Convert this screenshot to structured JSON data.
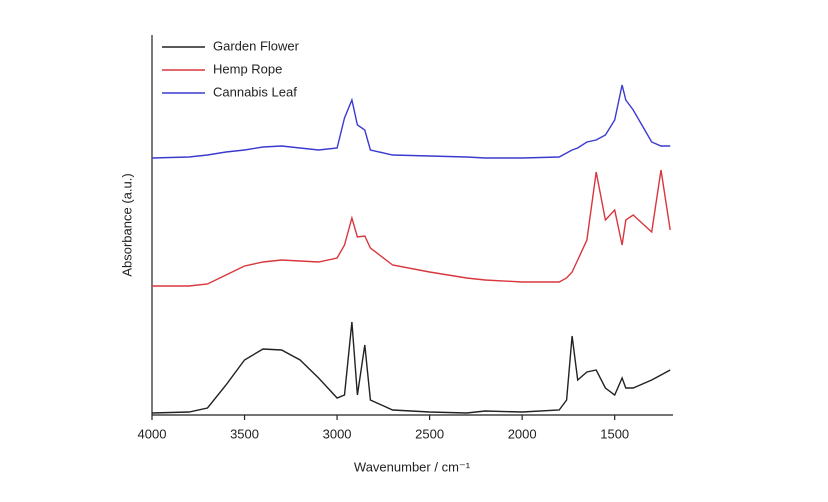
{
  "chart_data": {
    "type": "line",
    "x_label": "Wavenumber / cm⁻¹",
    "y_label": "Absorbance (a.u.)",
    "x": [
      4000,
      3800,
      3700,
      3600,
      3500,
      3400,
      3300,
      3200,
      3100,
      3000,
      2960,
      2920,
      2890,
      2850,
      2820,
      2700,
      2500,
      2300,
      2200,
      2000,
      1800,
      1760,
      1730,
      1700,
      1650,
      1600,
      1550,
      1500,
      1460,
      1440,
      1400,
      1300,
      1250,
      1200
    ],
    "xlim": [
      4000,
      1185
    ],
    "xticks": [
      4000,
      3500,
      3000,
      2500,
      2000,
      1500
    ],
    "ylim": [
      0,
      380
    ],
    "legend": "upper left",
    "series": [
      {
        "name": "Garden Flower",
        "color": "#222222",
        "values": [
          2,
          3,
          7,
          30,
          55,
          66,
          65,
          55,
          37,
          17,
          20,
          93,
          20,
          70,
          15,
          5,
          3,
          2,
          4,
          3,
          5,
          15,
          79,
          35,
          43,
          45,
          27,
          20,
          37,
          27,
          27,
          35,
          40,
          45
        ]
      },
      {
        "name": "Hemp Rope",
        "color": "#d9363e",
        "values": [
          129,
          129,
          131,
          140,
          149,
          153,
          155,
          154,
          153,
          157,
          170,
          197,
          178,
          179,
          167,
          150,
          143,
          137,
          135,
          133,
          133,
          137,
          143,
          155,
          175,
          243,
          195,
          205,
          170,
          195,
          200,
          183,
          245,
          185
        ]
      },
      {
        "name": "Cannabis Leaf",
        "color": "#3a3ad0",
        "values": [
          257,
          258,
          260,
          263,
          265,
          268,
          269,
          267,
          265,
          267,
          297,
          315,
          290,
          285,
          265,
          260,
          259,
          258,
          257,
          257,
          258,
          262,
          265,
          267,
          273,
          275,
          280,
          295,
          330,
          315,
          305,
          273,
          269,
          269
        ]
      }
    ]
  }
}
